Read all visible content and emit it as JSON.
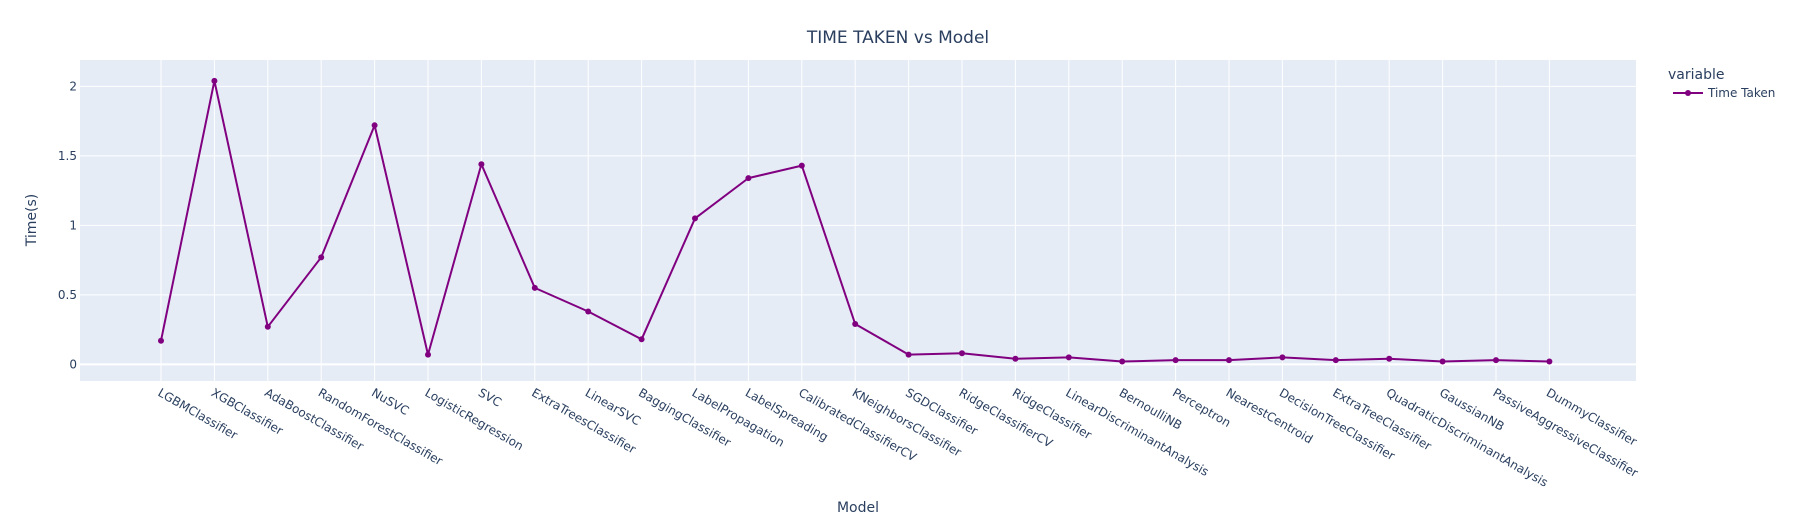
{
  "chart_data": {
    "type": "line",
    "title": "TIME TAKEN vs Model",
    "xlabel": "Model",
    "ylabel": "Time(s)",
    "categories": [
      "LGBMClassifier",
      "XGBClassifier",
      "AdaBoostClassifier",
      "RandomForestClassifier",
      "NuSVC",
      "LogisticRegression",
      "SVC",
      "ExtraTreesClassifier",
      "LinearSVC",
      "BaggingClassifier",
      "LabelPropagation",
      "LabelSpreading",
      "CalibratedClassifierCV",
      "KNeighborsClassifier",
      "SGDClassifier",
      "RidgeClassifierCV",
      "RidgeClassifier",
      "LinearDiscriminantAnalysis",
      "BernoulliNB",
      "Perceptron",
      "NearestCentroid",
      "DecisionTreeClassifier",
      "ExtraTreeClassifier",
      "QuadraticDiscriminantAnalysis",
      "GaussianNB",
      "PassiveAggressiveClassifier",
      "DummyClassifier"
    ],
    "series": [
      {
        "name": "Time Taken",
        "values": [
          0.17,
          2.04,
          0.27,
          0.77,
          1.72,
          0.07,
          1.44,
          0.55,
          0.38,
          0.18,
          1.05,
          1.34,
          1.43,
          0.29,
          0.07,
          0.08,
          0.04,
          0.05,
          0.02,
          0.03,
          0.03,
          0.05,
          0.03,
          0.04,
          0.02,
          0.03,
          0.02
        ]
      }
    ],
    "ylim": [
      -0.12,
      2.19
    ],
    "yticks": [
      0,
      0.5,
      1,
      1.5,
      2
    ],
    "ytick_labels": [
      "0",
      "0.5",
      "1",
      "1.5",
      "2"
    ],
    "grid": true,
    "legend": {
      "title": "variable",
      "position": "top-right"
    },
    "colors": {
      "line": "#800080",
      "plot_background": "#e5ecf6",
      "grid": "#ffffff",
      "text": "#2a3f5f"
    }
  }
}
